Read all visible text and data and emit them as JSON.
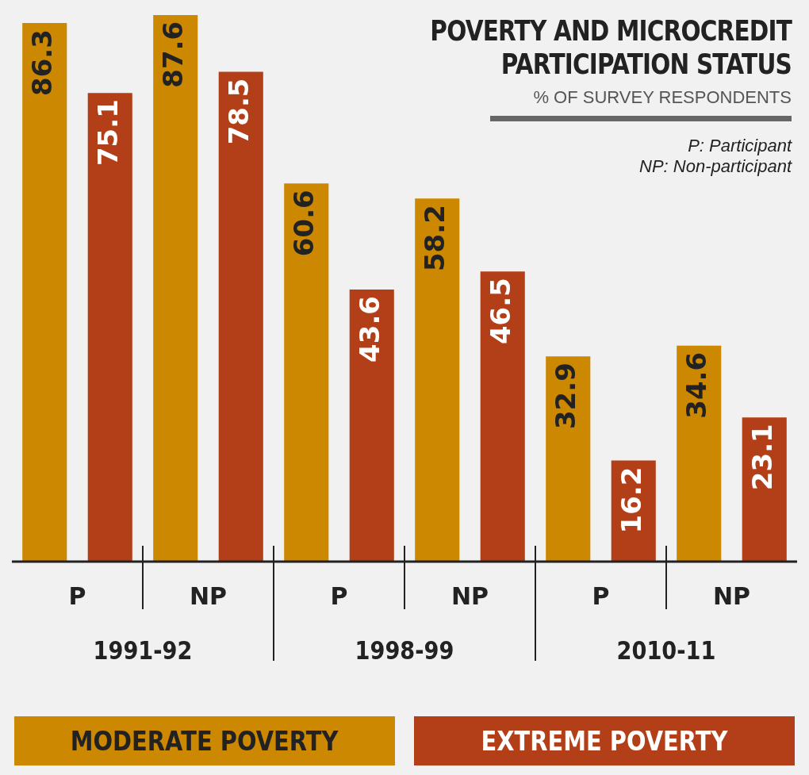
{
  "chart_data": {
    "type": "bar",
    "title": "POVERTY AND MICROCREDIT PARTICIPATION STATUS",
    "subtitle": "% OF SURVEY RESPONDENTS",
    "categories": [
      "P",
      "NP",
      "P",
      "NP",
      "P",
      "NP"
    ],
    "series": [
      {
        "name": "MODERATE POVERTY",
        "color": "#cc8800",
        "values": [
          86.3,
          87.6,
          60.6,
          58.2,
          32.9,
          34.6
        ]
      },
      {
        "name": "EXTREME POVERTY",
        "color": "#b23f17",
        "values": [
          75.1,
          78.5,
          43.6,
          46.5,
          16.2,
          23.1
        ]
      }
    ],
    "tick_labels": "x",
    "grid": false,
    "legend": "bottom",
    "data_labels": true,
    "annotations": [
      "1991-92",
      "1998-99",
      "2010-11",
      "P: Participant",
      "NP: Non-participant"
    ]
  }
}
